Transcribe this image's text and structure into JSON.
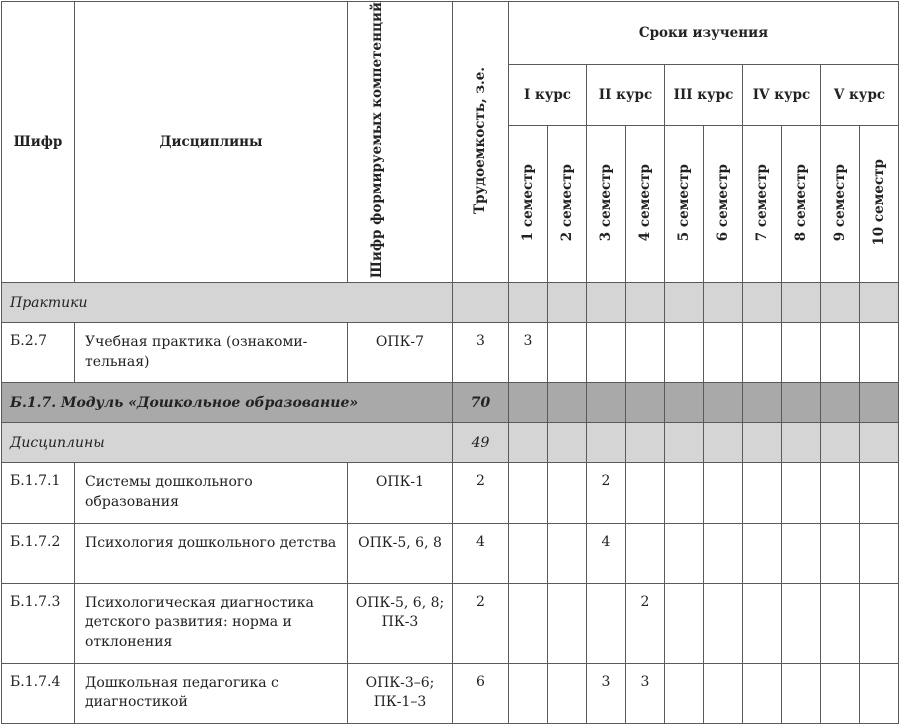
{
  "header": {
    "code": "Шифр",
    "discipline": "Дисциплины",
    "competencies": "Шифр формируемых компетенций",
    "labor": "Трудоемкость, з.е.",
    "terms": "Сроки изучения",
    "courses": [
      "I курс",
      "II курс",
      "III курс",
      "IV курс",
      "V курс"
    ],
    "semesters": [
      "1 семестр",
      "2 семестр",
      "3 семестр",
      "4 семестр",
      "5 семестр",
      "6 семестр",
      "7 семестр",
      "8 семестр",
      "9 семестр",
      "10 семестр"
    ]
  },
  "colors": {
    "section_light": "#d5d5d5",
    "section_dark": "#a9a9a9",
    "border": "#5a5a5a"
  },
  "rows": [
    {
      "type": "section",
      "style": "light",
      "title": "Практики",
      "labor": ""
    },
    {
      "type": "item",
      "code": "Б.2.7",
      "name": "Учебная практика (ознакоми-тельная)",
      "comp": "ОПК-7",
      "labor": "3",
      "sem": [
        "3",
        "",
        "",
        "",
        "",
        "",
        "",
        "",
        "",
        ""
      ]
    },
    {
      "type": "section",
      "style": "dark",
      "title": "Б.1.7. Модуль «Дошкольное образование»",
      "labor": "70"
    },
    {
      "type": "section",
      "style": "light",
      "title": "Дисциплины",
      "labor": "49"
    },
    {
      "type": "item",
      "code": "Б.1.7.1",
      "name": "Системы дошкольного образования",
      "comp": "ОПК-1",
      "labor": "2",
      "sem": [
        "",
        "",
        "2",
        "",
        "",
        "",
        "",
        "",
        "",
        ""
      ]
    },
    {
      "type": "item",
      "code": "Б.1.7.2",
      "name": "Психология дошкольного детства",
      "comp": "ОПК-5, 6, 8",
      "labor": "4",
      "sem": [
        "",
        "",
        "4",
        "",
        "",
        "",
        "",
        "",
        "",
        ""
      ]
    },
    {
      "type": "item",
      "code": "Б.1.7.3",
      "name": "Психологическая диагностика детского развития: норма и отклонения",
      "comp": "ОПК-5, 6, 8; ПК-3",
      "labor": "2",
      "sem": [
        "",
        "",
        "",
        "2",
        "",
        "",
        "",
        "",
        "",
        ""
      ]
    },
    {
      "type": "item",
      "code": "Б.1.7.4",
      "name": "Дошкольная педагогика с диагностикой",
      "comp": "ОПК-3–6; ПК-1–3",
      "labor": "6",
      "sem": [
        "",
        "",
        "3",
        "3",
        "",
        "",
        "",
        "",
        "",
        ""
      ]
    }
  ]
}
